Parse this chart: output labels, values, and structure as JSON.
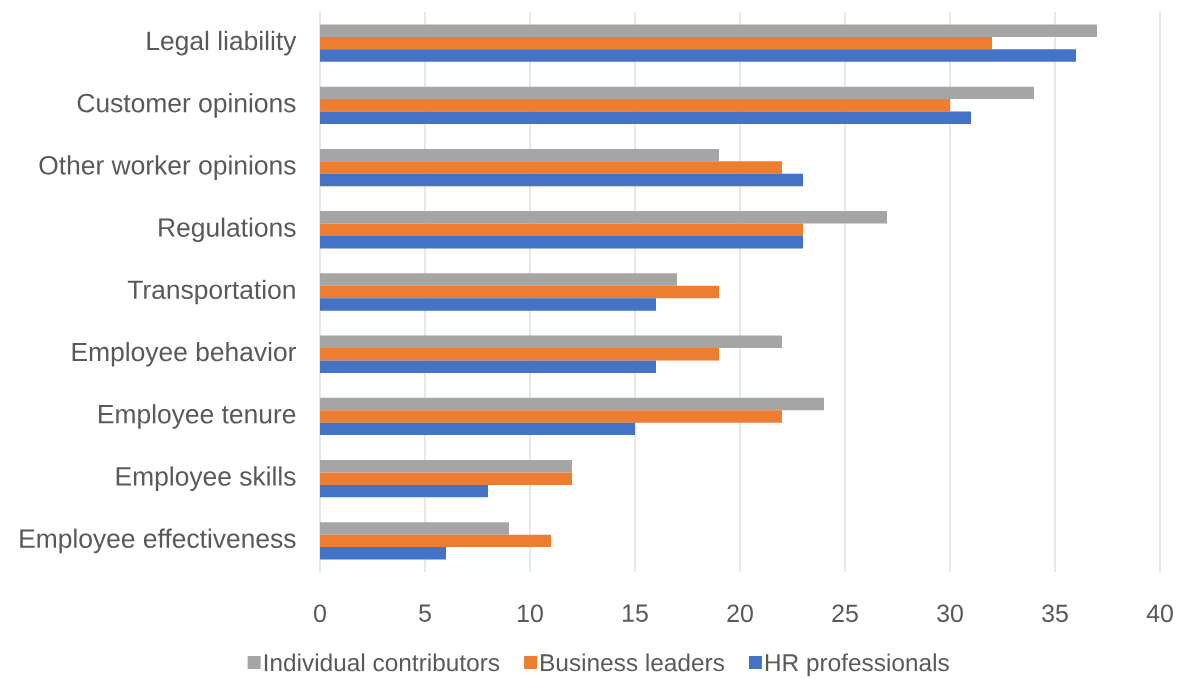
{
  "chart_data": {
    "type": "bar",
    "orientation": "horizontal",
    "categories": [
      "Legal liability",
      "Customer opinions",
      "Other worker opinions",
      "Regulations",
      "Transportation",
      "Employee behavior",
      "Employee tenure",
      "Employee skills",
      "Employee effectiveness"
    ],
    "series": [
      {
        "name": "Individual contributors",
        "color": "#a5a5a5",
        "values": [
          37,
          34,
          19,
          27,
          17,
          22,
          24,
          12,
          9
        ]
      },
      {
        "name": "Business leaders",
        "color": "#ed7d31",
        "values": [
          32,
          30,
          22,
          23,
          19,
          19,
          22,
          12,
          11
        ]
      },
      {
        "name": "HR professionals",
        "color": "#4472c4",
        "values": [
          36,
          31,
          23,
          23,
          16,
          16,
          15,
          8,
          6
        ]
      }
    ],
    "xlim": [
      0,
      40
    ],
    "xticks": [
      0,
      5,
      10,
      15,
      20,
      25,
      30,
      35,
      40
    ],
    "grid": "x",
    "legend": "bottom"
  }
}
